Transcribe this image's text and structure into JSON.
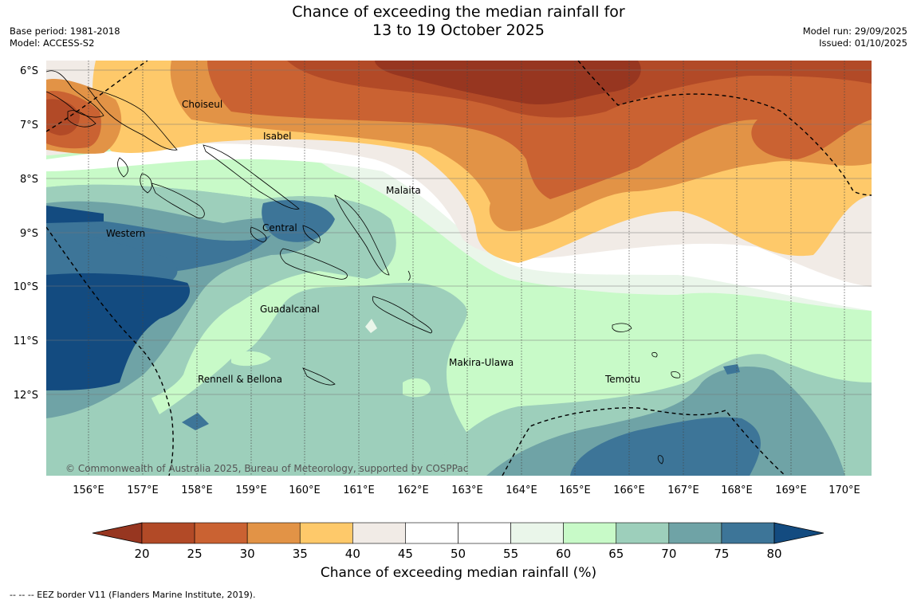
{
  "header": {
    "title_line1": "Chance of exceeding the median rainfall for",
    "title_line2": "13 to 19 October 2025",
    "base_period": "Base period: 1981-2018",
    "model": "Model: ACCESS-S2",
    "model_run": "Model run: 29/09/2025",
    "issued": "Issued: 01/10/2025"
  },
  "map": {
    "latitudes": [
      "6°S",
      "7°S",
      "8°S",
      "9°S",
      "10°S",
      "11°S",
      "12°S"
    ],
    "longitudes": [
      "156°E",
      "157°E",
      "158°E",
      "159°E",
      "160°E",
      "161°E",
      "162°E",
      "163°E",
      "164°E",
      "165°E",
      "166°E",
      "167°E",
      "168°E",
      "169°E",
      "170°E"
    ],
    "provinces": [
      "Choiseul",
      "Isabel",
      "Malaita",
      "Western",
      "Central",
      "Guadalcanal",
      "Makira-Ulawa",
      "Temotu",
      "Rennell & Bellona"
    ],
    "copyright": "© Commonwealth of Australia 2025, Bureau of Meteorology, supported by COSPPac"
  },
  "colorbar": {
    "ticks": [
      "20",
      "25",
      "30",
      "35",
      "40",
      "45",
      "50",
      "55",
      "60",
      "65",
      "70",
      "75",
      "80"
    ],
    "colors": [
      "#973620",
      "#b24a27",
      "#ca6232",
      "#e29346",
      "#fec96a",
      "#f1ebe6",
      "#ffffff",
      "#ffffff",
      "#eaf6ea",
      "#c8fac8",
      "#9dcfbb",
      "#6fa3a6",
      "#3d7598",
      "#134b80"
    ],
    "title": "Chance of exceeding median rainfall (%)"
  },
  "legend_note": "--  --  -- EEZ border V11 (Flanders Marine Institute, 2019)."
}
